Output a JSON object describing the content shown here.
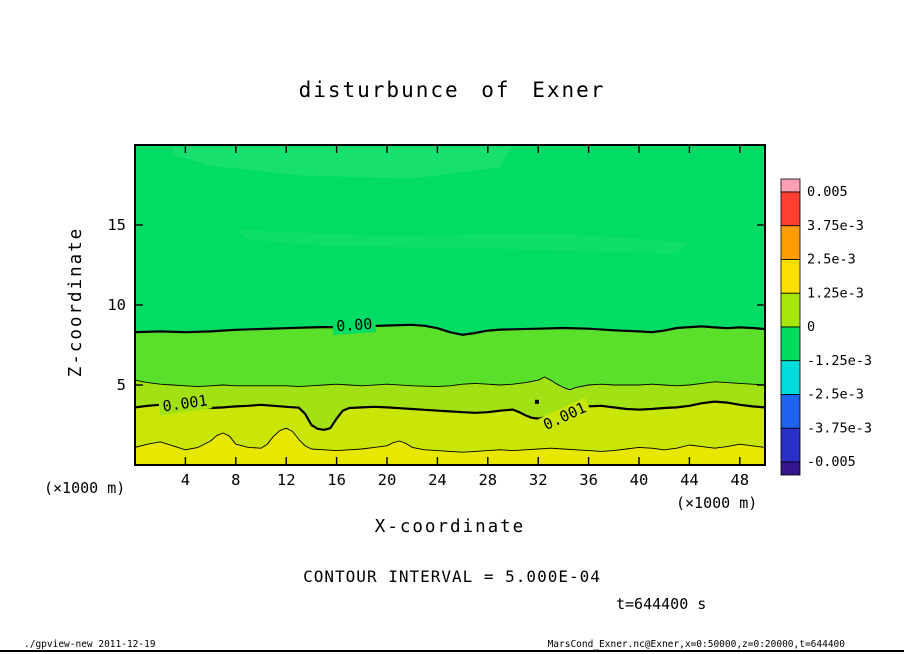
{
  "annotations": {
    "contour_interval": "CONTOUR INTERVAL = 5.000E-04",
    "time": "t=644400 s"
  },
  "footer": {
    "left": "./gpview-new  2011-12-19",
    "right": "MarsCond_Exner.nc@Exner,x=0:50000,z=0:20000,t=644400"
  },
  "chart_data": {
    "type": "filled_contour",
    "title": "disturbunce of Exner",
    "x_range": [
      0,
      50
    ],
    "z_range": [
      0,
      20
    ],
    "axes": {
      "x": {
        "label": "X-coordinate",
        "unit": "(×1000 m)",
        "ticks": [
          4,
          8,
          12,
          16,
          20,
          24,
          28,
          32,
          36,
          40,
          44,
          48
        ]
      },
      "z": {
        "label": "Z-coordinate",
        "unit": "(×1000 m)",
        "ticks": [
          5,
          10,
          15
        ]
      }
    },
    "background_color": "#00DC64",
    "patches": [
      {
        "color": "#35E47B",
        "opacity": 0.45,
        "points": [
          [
            3,
            20
          ],
          [
            30,
            20
          ],
          [
            29,
            18.6
          ],
          [
            22,
            17.9
          ],
          [
            13,
            18.1
          ],
          [
            6,
            18.7
          ],
          [
            3,
            19.4
          ]
        ]
      },
      {
        "color": "#35E47B",
        "opacity": 0.3,
        "points": [
          [
            8,
            14.7
          ],
          [
            20,
            14.3
          ],
          [
            33,
            14.5
          ],
          [
            44,
            13.9
          ],
          [
            43,
            13.2
          ],
          [
            30,
            13.5
          ],
          [
            15,
            13.7
          ],
          [
            9,
            14.1
          ]
        ]
      }
    ],
    "contours": [
      {
        "value": 0.0,
        "line_width": 2.2,
        "fill_below": "#5ADF2A",
        "points": [
          [
            0,
            8.3
          ],
          [
            2,
            8.35
          ],
          [
            4,
            8.3
          ],
          [
            6,
            8.35
          ],
          [
            8,
            8.45
          ],
          [
            10,
            8.5
          ],
          [
            12,
            8.55
          ],
          [
            14,
            8.6
          ],
          [
            15,
            8.62
          ],
          [
            16,
            8.62
          ],
          [
            18,
            8.66
          ],
          [
            20,
            8.72
          ],
          [
            22,
            8.76
          ],
          [
            23,
            8.7
          ],
          [
            24,
            8.55
          ],
          [
            25,
            8.3
          ],
          [
            26,
            8.14
          ],
          [
            27,
            8.25
          ],
          [
            28,
            8.4
          ],
          [
            29,
            8.46
          ],
          [
            30,
            8.48
          ],
          [
            32,
            8.52
          ],
          [
            34,
            8.56
          ],
          [
            36,
            8.52
          ],
          [
            38,
            8.42
          ],
          [
            40,
            8.35
          ],
          [
            41,
            8.3
          ],
          [
            42,
            8.4
          ],
          [
            43,
            8.56
          ],
          [
            44,
            8.62
          ],
          [
            45,
            8.66
          ],
          [
            46,
            8.6
          ],
          [
            47,
            8.55
          ],
          [
            48,
            8.6
          ],
          [
            49,
            8.56
          ],
          [
            50,
            8.5
          ]
        ],
        "labels": [
          {
            "text": "0.00",
            "x": 17.4,
            "z": 8.75,
            "rotate": -4,
            "bg": "#00DC64"
          }
        ]
      },
      {
        "value": 0.0005,
        "line_width": 0.9,
        "fill_below": "#A2E214",
        "points": [
          [
            0,
            5.3
          ],
          [
            1,
            5.15
          ],
          [
            2,
            5.05
          ],
          [
            3,
            5.0
          ],
          [
            4,
            4.95
          ],
          [
            5,
            4.9
          ],
          [
            6,
            4.95
          ],
          [
            7,
            5.0
          ],
          [
            8,
            4.95
          ],
          [
            10,
            4.95
          ],
          [
            12,
            4.95
          ],
          [
            13,
            4.9
          ],
          [
            14,
            4.95
          ],
          [
            15,
            5.0
          ],
          [
            16,
            5.05
          ],
          [
            17,
            5.0
          ],
          [
            18,
            4.95
          ],
          [
            20,
            5.05
          ],
          [
            22,
            4.95
          ],
          [
            24,
            4.9
          ],
          [
            25,
            4.95
          ],
          [
            26,
            5.05
          ],
          [
            27,
            5.1
          ],
          [
            28,
            5.05
          ],
          [
            29,
            5.0
          ],
          [
            30,
            5.05
          ],
          [
            31,
            5.15
          ],
          [
            32,
            5.3
          ],
          [
            32.5,
            5.5
          ],
          [
            33,
            5.3
          ],
          [
            33.5,
            5.05
          ],
          [
            34,
            4.85
          ],
          [
            34.5,
            4.7
          ],
          [
            35,
            4.85
          ],
          [
            36,
            5.0
          ],
          [
            37,
            5.05
          ],
          [
            38,
            5.0
          ],
          [
            40,
            5.0
          ],
          [
            41,
            5.05
          ],
          [
            42,
            5.0
          ],
          [
            43,
            4.95
          ],
          [
            44,
            5.0
          ],
          [
            45,
            5.1
          ],
          [
            46,
            5.2
          ],
          [
            47,
            5.15
          ],
          [
            48,
            5.1
          ],
          [
            49,
            5.05
          ],
          [
            50,
            5.0
          ]
        ],
        "labels": []
      },
      {
        "value": 0.001,
        "line_width": 2.2,
        "fill_below": "#C9E606",
        "points": [
          [
            0,
            3.6
          ],
          [
            1,
            3.7
          ],
          [
            2,
            3.76
          ],
          [
            3,
            3.8
          ],
          [
            4,
            3.7
          ],
          [
            5,
            3.6
          ],
          [
            6,
            3.56
          ],
          [
            7,
            3.6
          ],
          [
            8,
            3.66
          ],
          [
            9,
            3.7
          ],
          [
            10,
            3.76
          ],
          [
            11,
            3.7
          ],
          [
            12,
            3.64
          ],
          [
            13,
            3.58
          ],
          [
            13.5,
            3.2
          ],
          [
            14,
            2.5
          ],
          [
            14.5,
            2.26
          ],
          [
            15,
            2.2
          ],
          [
            15.5,
            2.3
          ],
          [
            16,
            2.9
          ],
          [
            16.5,
            3.4
          ],
          [
            17,
            3.56
          ],
          [
            18,
            3.6
          ],
          [
            19,
            3.64
          ],
          [
            20,
            3.6
          ],
          [
            21,
            3.55
          ],
          [
            22,
            3.5
          ],
          [
            23,
            3.45
          ],
          [
            24,
            3.4
          ],
          [
            25,
            3.35
          ],
          [
            26,
            3.3
          ],
          [
            27,
            3.26
          ],
          [
            28,
            3.3
          ],
          [
            29,
            3.4
          ],
          [
            30,
            3.46
          ],
          [
            30.5,
            3.3
          ],
          [
            31,
            3.1
          ],
          [
            31.5,
            2.95
          ],
          [
            32,
            2.9
          ],
          [
            32.5,
            2.96
          ],
          [
            33,
            3.1
          ],
          [
            34,
            3.3
          ],
          [
            35,
            3.5
          ],
          [
            36,
            3.66
          ],
          [
            37,
            3.7
          ],
          [
            38,
            3.6
          ],
          [
            39,
            3.5
          ],
          [
            40,
            3.46
          ],
          [
            41,
            3.5
          ],
          [
            42,
            3.56
          ],
          [
            43,
            3.6
          ],
          [
            44,
            3.7
          ],
          [
            45,
            3.86
          ],
          [
            46,
            3.96
          ],
          [
            47,
            3.9
          ],
          [
            48,
            3.76
          ],
          [
            49,
            3.66
          ],
          [
            50,
            3.6
          ]
        ],
        "labels": [
          {
            "text": "0.001",
            "x": 3.97,
            "z": 3.85,
            "rotate": -8,
            "bg": "#A2E214"
          },
          {
            "text": "0.001",
            "x": 34.1,
            "z": 3.05,
            "rotate": -25,
            "bg": "#C9E606"
          }
        ]
      },
      {
        "value": 0.0015,
        "line_width": 0.9,
        "fill_below": "#E7E700",
        "points": [
          [
            0,
            1.1
          ],
          [
            1,
            1.3
          ],
          [
            2,
            1.45
          ],
          [
            3,
            1.2
          ],
          [
            4,
            0.95
          ],
          [
            5,
            1.1
          ],
          [
            6,
            1.5
          ],
          [
            6.5,
            1.85
          ],
          [
            7,
            2.0
          ],
          [
            7.5,
            1.8
          ],
          [
            8,
            1.3
          ],
          [
            9,
            1.1
          ],
          [
            10,
            1.05
          ],
          [
            10.5,
            1.3
          ],
          [
            11,
            1.8
          ],
          [
            11.5,
            2.15
          ],
          [
            12,
            2.3
          ],
          [
            12.5,
            2.1
          ],
          [
            13,
            1.6
          ],
          [
            13.5,
            1.2
          ],
          [
            14,
            1.0
          ],
          [
            15,
            0.95
          ],
          [
            16,
            0.9
          ],
          [
            17,
            0.95
          ],
          [
            18,
            1.0
          ],
          [
            19,
            1.1
          ],
          [
            20,
            1.2
          ],
          [
            20.5,
            1.4
          ],
          [
            21,
            1.5
          ],
          [
            21.5,
            1.35
          ],
          [
            22,
            1.1
          ],
          [
            23,
            0.95
          ],
          [
            24,
            0.9
          ],
          [
            25,
            0.85
          ],
          [
            26,
            0.8
          ],
          [
            27,
            0.85
          ],
          [
            28,
            0.9
          ],
          [
            29,
            0.95
          ],
          [
            30,
            0.9
          ],
          [
            31,
            0.95
          ],
          [
            32,
            1.0
          ],
          [
            33,
            1.05
          ],
          [
            34,
            1.0
          ],
          [
            35,
            0.95
          ],
          [
            36,
            0.9
          ],
          [
            37,
            0.85
          ],
          [
            38,
            0.9
          ],
          [
            39,
            1.0
          ],
          [
            40,
            1.1
          ],
          [
            41,
            1.05
          ],
          [
            42,
            0.95
          ],
          [
            43,
            1.05
          ],
          [
            44,
            1.25
          ],
          [
            45,
            1.15
          ],
          [
            46,
            1.05
          ],
          [
            47,
            1.15
          ],
          [
            48,
            1.3
          ],
          [
            49,
            1.2
          ],
          [
            50,
            1.1
          ]
        ],
        "labels": []
      }
    ],
    "marker": {
      "x": 31.9,
      "z": 3.95,
      "color": "#000000"
    },
    "colorbar": {
      "labels": [
        "0.005",
        "3.75e-3",
        "2.5e-3",
        "1.25e-3",
        "0",
        "-1.25e-3",
        "-2.5e-3",
        "-3.75e-3",
        "-0.005"
      ],
      "colors": [
        "#FF9FB4",
        "#FF4030",
        "#FF9C00",
        "#FFDF00",
        "#A6E60A",
        "#00DB5F",
        "#00DCDC",
        "#1E64F0",
        "#2830C8",
        "#35158C"
      ]
    }
  }
}
